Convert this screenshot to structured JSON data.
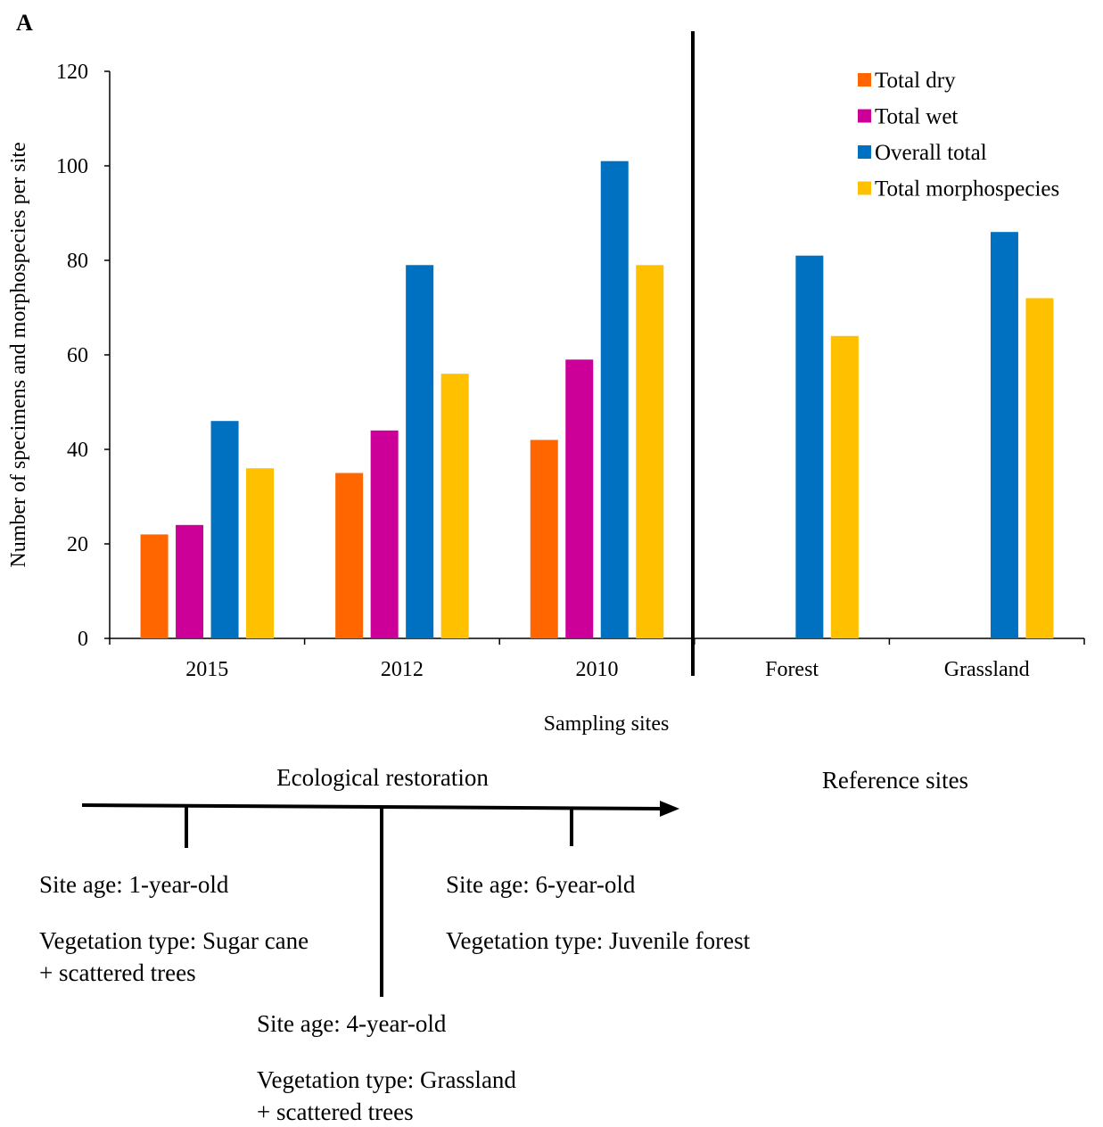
{
  "panel_label": "A",
  "chart_data": {
    "type": "bar",
    "categories": [
      "2015",
      "2012",
      "2010",
      "Forest",
      "Grassland"
    ],
    "series": [
      {
        "name": "Total dry",
        "color": "#FF6600",
        "values": [
          22,
          35,
          42,
          null,
          null
        ]
      },
      {
        "name": "Total wet",
        "color": "#CC0099",
        "values": [
          24,
          44,
          59,
          null,
          null
        ]
      },
      {
        "name": "Overall total",
        "color": "#0070C0",
        "values": [
          46,
          79,
          101,
          81,
          86
        ]
      },
      {
        "name": "Total morphospecies",
        "color": "#FFC000",
        "values": [
          36,
          56,
          79,
          64,
          72
        ]
      }
    ],
    "xlabel": "Sampling sites",
    "ylabel": "Number of specimens and morphospecies per site",
    "ylim": [
      0,
      120
    ],
    "yticks": [
      "0",
      "20",
      "40",
      "60",
      "80",
      "100",
      "120"
    ],
    "legend_position": "top-right",
    "grid": false
  },
  "timeline": {
    "title": "Ecological restoration",
    "reference_label": "Reference sites",
    "stages": [
      {
        "age": "Site age: 1-year-old",
        "vegetation_line1": "Vegetation type: Sugar cane",
        "vegetation_line2": "+ scattered trees"
      },
      {
        "age": "Site age: 4-year-old",
        "vegetation_line1": "Vegetation type: Grassland",
        "vegetation_line2": "+ scattered trees"
      },
      {
        "age": "Site age: 6-year-old",
        "vegetation_line1": "Vegetation type: Juvenile forest",
        "vegetation_line2": ""
      }
    ]
  }
}
